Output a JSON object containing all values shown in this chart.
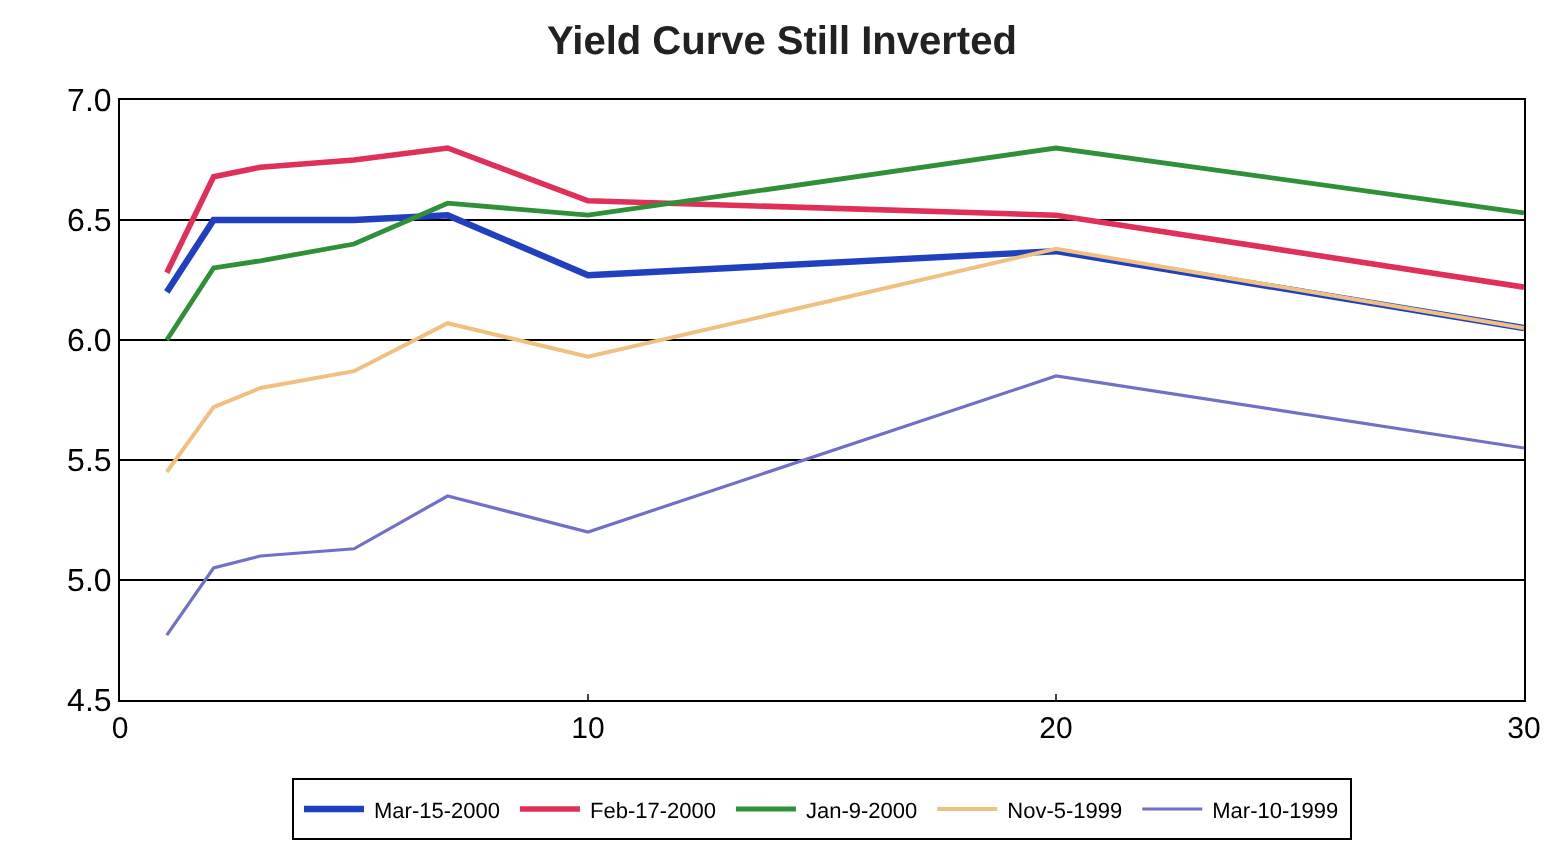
{
  "chart_data": {
    "type": "line",
    "title": "Yield Curve Still Inverted",
    "x": [
      1,
      2,
      3,
      5,
      7,
      10,
      20,
      30
    ],
    "series": [
      {
        "name": "Mar-15-2000",
        "color": "#2040c0",
        "values": [
          6.2,
          6.5,
          6.5,
          6.5,
          6.52,
          6.27,
          6.37,
          6.05
        ]
      },
      {
        "name": "Feb-17-2000",
        "color": "#e0305a",
        "values": [
          6.28,
          6.68,
          6.72,
          6.75,
          6.8,
          6.58,
          6.52,
          6.22
        ]
      },
      {
        "name": "Jan-9-2000",
        "color": "#30903a",
        "values": [
          6.0,
          6.3,
          6.33,
          6.4,
          6.57,
          6.52,
          6.8,
          6.53
        ]
      },
      {
        "name": "Nov-5-1999",
        "color": "#f0c080",
        "values": [
          5.45,
          5.72,
          5.8,
          5.87,
          6.07,
          5.93,
          6.38,
          6.05
        ]
      },
      {
        "name": "Mar-10-1999",
        "color": "#7070c8",
        "values": [
          4.77,
          5.05,
          5.1,
          5.13,
          5.35,
          5.2,
          5.85,
          5.55
        ]
      }
    ],
    "xlim": [
      0,
      30
    ],
    "xticks": [
      0,
      10,
      20,
      30
    ],
    "ylim": [
      4.5,
      7.0
    ],
    "yticks": [
      {
        "value": 4.5,
        "label": "4.5"
      },
      {
        "value": 5.0,
        "label": "5.0"
      },
      {
        "value": 5.5,
        "label": "5.5"
      },
      {
        "value": 6.0,
        "label": "6.0"
      },
      {
        "value": 6.5,
        "label": "6.5"
      },
      {
        "value": 7.0,
        "label": "7.0"
      }
    ],
    "grid": "y",
    "legend": "bottom",
    "marker": "none",
    "line_style": "solid"
  }
}
